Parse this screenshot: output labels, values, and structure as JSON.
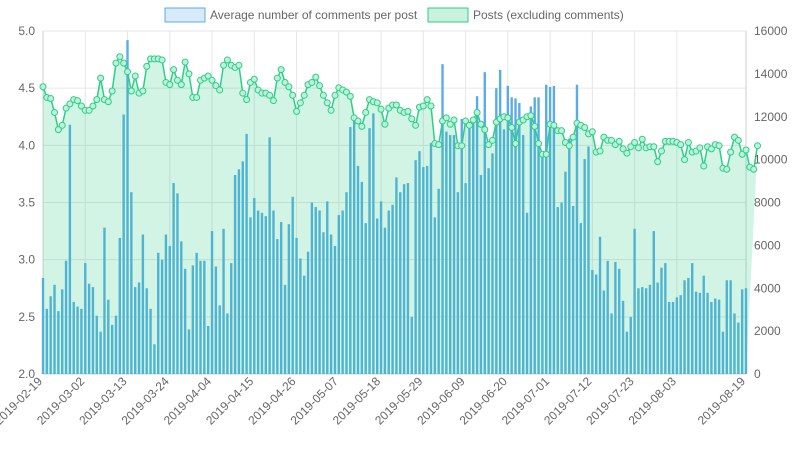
{
  "legend": {
    "series_bar": "Average number of comments per post",
    "series_line": "Posts (excluding comments)"
  },
  "colors": {
    "bar_fill": "#59ace6",
    "bar_legend_fill": "#d6eaf8",
    "bar_legend_stroke": "#59ace6",
    "line_stroke": "#2ccf89",
    "area_fill": "rgba(44,207,137,0.22)",
    "line_legend_fill": "#c8f1de",
    "point_fill": "#bff0d9"
  },
  "chart_data": {
    "type": "bar+line",
    "x_start": "2019-02-19",
    "x_end": "2019-08-19",
    "x_tick_labels": [
      "2019-02-19",
      "2019-03-02",
      "2019-03-13",
      "2019-03-24",
      "2019-04-04",
      "2019-04-15",
      "2019-04-26",
      "2019-05-07",
      "2019-05-18",
      "2019-05-29",
      "2019-06-09",
      "2019-06-20",
      "2019-07-01",
      "2019-07-12",
      "2019-07-23",
      "2019-08-03",
      "2019-08-19"
    ],
    "y_left": {
      "min": 2.0,
      "max": 5.0,
      "ticks": [
        "2.0",
        "2.5",
        "3.0",
        "3.5",
        "4.0",
        "4.5",
        "5.0"
      ]
    },
    "y_right": {
      "min": 0,
      "max": 16000,
      "ticks": [
        "0",
        "2000",
        "4000",
        "6000",
        "8000",
        "10000",
        "12000",
        "14000",
        "16000"
      ]
    },
    "grid": true,
    "legend_position": "top",
    "series": [
      {
        "name": "Average number of comments per post",
        "axis": "left",
        "kind": "bar",
        "values": [
          2.84,
          2.57,
          2.68,
          2.78,
          2.55,
          2.74,
          2.99,
          4.18,
          2.63,
          2.59,
          2.57,
          2.97,
          2.79,
          2.76,
          2.51,
          2.37,
          3.28,
          2.65,
          2.43,
          2.51,
          3.19,
          4.27,
          4.92,
          3.59,
          2.76,
          2.8,
          3.22,
          2.75,
          2.57,
          2.26,
          3.06,
          3.0,
          3.22,
          3.12,
          3.67,
          3.58,
          3.16,
          2.92,
          2.39,
          2.95,
          3.06,
          2.99,
          2.99,
          2.42,
          3.25,
          2.94,
          2.6,
          3.27,
          2.53,
          2.97,
          3.74,
          3.79,
          3.86,
          4.1,
          3.37,
          3.54,
          3.43,
          3.41,
          3.38,
          4.07,
          3.43,
          3.18,
          3.33,
          2.78,
          3.31,
          3.55,
          3.19,
          3.01,
          2.86,
          3.07,
          3.5,
          3.46,
          3.43,
          3.24,
          3.51,
          3.22,
          3.12,
          3.39,
          3.43,
          3.59,
          4.16,
          4.25,
          3.82,
          3.68,
          3.32,
          4.15,
          4.28,
          3.36,
          3.51,
          3.28,
          3.43,
          3.48,
          3.72,
          3.59,
          3.66,
          3.67,
          2.5,
          3.87,
          3.95,
          3.81,
          3.82,
          4.02,
          3.37,
          3.62,
          4.71,
          4.12,
          4.09,
          4.09,
          3.59,
          4.23,
          3.67,
          4.2,
          4.2,
          4.43,
          3.74,
          4.64,
          3.8,
          3.93,
          4.5,
          4.66,
          4.14,
          4.52,
          4.42,
          4.41,
          4.37,
          4.09,
          3.41,
          4.34,
          4.42,
          4.42,
          3.9,
          4.53,
          4.51,
          4.52,
          3.46,
          3.5,
          3.77,
          4.06,
          3.47,
          4.53,
          3.32,
          3.88,
          3.99,
          2.91,
          2.87,
          3.2,
          2.73,
          2.99,
          2.53,
          2.98,
          2.92,
          2.64,
          2.37,
          2.5,
          3.27,
          2.75,
          2.76,
          2.75,
          2.78,
          3.25,
          2.8,
          2.93,
          2.97,
          2.63,
          2.63,
          2.67,
          2.69,
          2.82,
          2.84,
          2.97,
          2.72,
          2.71,
          2.86,
          2.71,
          2.63,
          2.66,
          2.65,
          2.37,
          2.82,
          2.82,
          2.53,
          2.45,
          2.74,
          2.75
        ]
      },
      {
        "name": "Posts (excluding comments)",
        "axis": "right",
        "kind": "line-area",
        "values": [
          13400,
          12900,
          12850,
          12200,
          11400,
          11600,
          12400,
          12600,
          12800,
          12750,
          12500,
          12300,
          12300,
          12500,
          12800,
          13800,
          12800,
          12700,
          13200,
          14500,
          14800,
          14500,
          14100,
          13200,
          13900,
          13100,
          13200,
          14350,
          14700,
          14700,
          14700,
          14650,
          13600,
          13500,
          14200,
          13700,
          13500,
          14550,
          14000,
          12900,
          12900,
          13700,
          13800,
          13900,
          13700,
          13450,
          13250,
          14400,
          14650,
          14400,
          14300,
          14400,
          13100,
          12800,
          13600,
          13750,
          13250,
          13100,
          13100,
          13000,
          12750,
          13800,
          14200,
          13600,
          13400,
          13000,
          12250,
          12650,
          13000,
          13500,
          13600,
          13850,
          13450,
          13000,
          12650,
          12300,
          13000,
          13350,
          13250,
          13150,
          12950,
          11950,
          11800,
          11550,
          12200,
          12800,
          12700,
          12650,
          12350,
          11650,
          12400,
          12550,
          12550,
          12300,
          12200,
          12250,
          11900,
          11600,
          12450,
          12500,
          12800,
          12500,
          10750,
          10700,
          11800,
          11950,
          11650,
          11850,
          10650,
          10650,
          11800,
          11600,
          11850,
          12200,
          11650,
          11400,
          10700,
          10900,
          11750,
          11900,
          12000,
          11950,
          11500,
          10750,
          11750,
          11850,
          12000,
          12050,
          11550,
          10750,
          10250,
          10250,
          11650,
          11600,
          11350,
          11350,
          10800,
          10650,
          11050,
          11700,
          11600,
          11500,
          11200,
          11300,
          10350,
          10400,
          11050,
          10900,
          10900,
          10700,
          10850,
          10500,
          10300,
          10600,
          10800,
          10550,
          10950,
          10550,
          10600,
          10600,
          9900,
          10400,
          10850,
          10850,
          10850,
          10800,
          10700,
          10000,
          10800,
          10350,
          10400,
          10550,
          9700,
          10600,
          10500,
          10700,
          10650,
          9600,
          9550,
          10350,
          11050,
          10900,
          10250,
          10450,
          9650,
          9550,
          10650
        ]
      }
    ]
  }
}
